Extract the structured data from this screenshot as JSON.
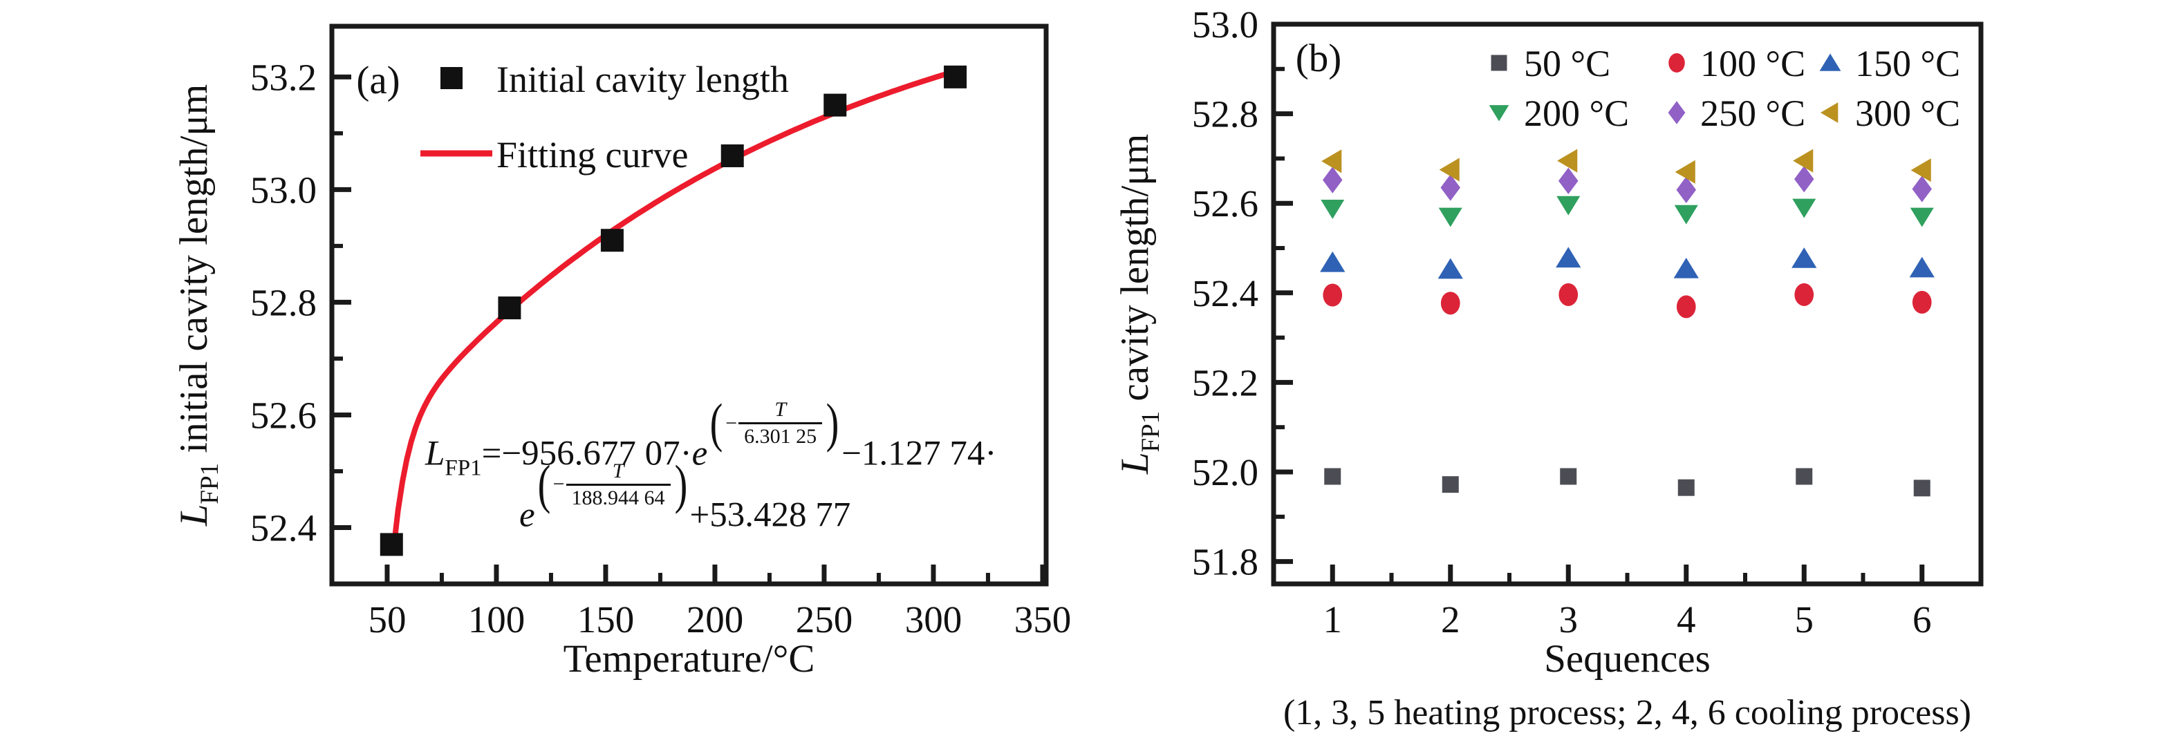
{
  "figure_background": "#ffffff",
  "axis_color": "#1a1a1a",
  "chart_data": [
    {
      "type": "scatter",
      "tag": "(a)",
      "xlabel": "Temperature/°C",
      "ylabel": {
        "var": "L",
        "sub": "FP1",
        "rest": " initial cavity length/μm"
      },
      "xlim": [
        24.7,
        351.6
      ],
      "ylim": [
        52.3,
        53.29
      ],
      "x_ticks": {
        "values": [
          50,
          100,
          150,
          200,
          250,
          300,
          350
        ],
        "labels": [
          "50",
          "100",
          "150",
          "200",
          "250",
          "300",
          "350"
        ],
        "minor": [
          75,
          125,
          175,
          225,
          275,
          325
        ]
      },
      "y_ticks": {
        "values": [
          52.4,
          52.6,
          52.8,
          53.0,
          53.2
        ],
        "labels": [
          "52.4",
          "52.6",
          "52.8",
          "53.0",
          "53.2"
        ],
        "minor": [
          52.5,
          52.7,
          52.9,
          53.1
        ]
      },
      "legend": [
        {
          "label": "Initial cavity length",
          "marker": "square",
          "color": "#111111"
        },
        {
          "label": "Fitting curve",
          "marker": "line",
          "color": "#ec1c2d"
        }
      ],
      "scatter": {
        "name": "Initial cavity length",
        "marker": "square",
        "color": "#111111",
        "x": [
          52,
          106,
          153,
          208,
          255,
          310
        ],
        "y": [
          52.37,
          52.79,
          52.91,
          53.06,
          53.15,
          53.2
        ]
      },
      "fit_curve": {
        "name": "Fitting curve",
        "color": "#ec1c2d",
        "model": "L = A1·exp(−T/t1) + A2·exp(−T/t2) + y0",
        "A1": -956.67707,
        "t1": 6.30125,
        "A2": -1.12774,
        "t2": 188.94464,
        "y0": 53.42877,
        "T_range": [
          53,
          311
        ]
      },
      "equation": {
        "lhs": "L",
        "lhs_sub": "FP1",
        "seg1": "=−956.677 07·",
        "e1": "e",
        "open1": "(",
        "minus1": "−",
        "num1": "T",
        "den1": "6.301 25",
        "close1": ")",
        "seg2": "−1.127 74·",
        "e2": "e",
        "open2": "(",
        "minus2": "−",
        "num2": "T",
        "den2": "188.944 64",
        "close2": ")",
        "seg3": "+53.428 77"
      }
    },
    {
      "type": "scatter",
      "tag": "(b)",
      "xlabel": "Sequences",
      "xlabel_note": "(1, 3, 5 heating process; 2, 4, 6 cooling process)",
      "ylabel": {
        "var": "L",
        "sub": "FP1",
        "rest": " cavity length/μm"
      },
      "xlim": [
        0.5,
        6.5
      ],
      "ylim": [
        51.75,
        53.0
      ],
      "x_ticks": {
        "values": [
          1,
          2,
          3,
          4,
          5,
          6
        ],
        "labels": [
          "1",
          "2",
          "3",
          "4",
          "5",
          "6"
        ],
        "minor": [
          1.5,
          2.5,
          3.5,
          4.5,
          5.5
        ]
      },
      "y_ticks": {
        "values": [
          51.8,
          52.0,
          52.2,
          52.4,
          52.6,
          52.8,
          53.0
        ],
        "labels": [
          "51.8",
          "52.0",
          "52.2",
          "52.4",
          "52.6",
          "52.8",
          "53.0"
        ],
        "minor": [
          51.9,
          52.1,
          52.3,
          52.5,
          52.7,
          52.9
        ]
      },
      "categories": [
        1,
        2,
        3,
        4,
        5,
        6
      ],
      "series": [
        {
          "label": "50 °C",
          "marker": "square",
          "color": "#4c4d54",
          "values": [
            51.99,
            51.972,
            51.99,
            51.965,
            51.99,
            51.964
          ]
        },
        {
          "label": "100 °C",
          "marker": "circle",
          "color": "#dc2438",
          "values": [
            52.395,
            52.377,
            52.396,
            52.369,
            52.396,
            52.379
          ]
        },
        {
          "label": "150 °C",
          "marker": "triangle-up",
          "color": "#2f62b5",
          "values": [
            52.468,
            52.453,
            52.478,
            52.454,
            52.477,
            52.456
          ]
        },
        {
          "label": "200 °C",
          "marker": "triangle-down",
          "color": "#2fa05e",
          "values": [
            52.588,
            52.57,
            52.596,
            52.576,
            52.59,
            52.57
          ]
        },
        {
          "label": "250 °C",
          "marker": "diamond",
          "color": "#9161c6",
          "values": [
            52.652,
            52.635,
            52.65,
            52.63,
            52.654,
            52.632
          ]
        },
        {
          "label": "300 °C",
          "marker": "triangle-left",
          "color": "#bb9120",
          "values": [
            52.694,
            52.675,
            52.695,
            52.67,
            52.695,
            52.674
          ]
        }
      ]
    }
  ]
}
